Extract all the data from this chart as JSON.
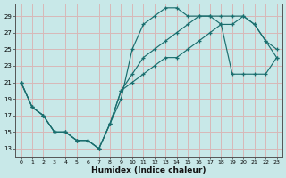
{
  "xlabel": "Humidex (Indice chaleur)",
  "bg_color": "#c8e8e8",
  "grid_color": "#d8b8b8",
  "line_color": "#1a6e6e",
  "xlim": [
    -0.5,
    23.5
  ],
  "ylim": [
    12.0,
    30.5
  ],
  "xticks": [
    0,
    1,
    2,
    3,
    4,
    5,
    6,
    7,
    8,
    9,
    10,
    11,
    12,
    13,
    14,
    15,
    16,
    17,
    18,
    19,
    20,
    21,
    22,
    23
  ],
  "yticks": [
    13,
    15,
    17,
    19,
    21,
    23,
    25,
    27,
    29
  ],
  "line1_x": [
    0,
    1,
    2,
    3,
    4,
    5,
    6,
    7,
    8,
    9,
    10,
    11,
    12,
    13,
    14,
    15,
    16,
    17,
    18,
    19,
    20,
    21,
    22,
    23
  ],
  "line1_y": [
    21,
    18,
    17,
    15,
    15,
    14,
    14,
    13,
    16,
    19,
    25,
    28,
    29,
    30,
    30,
    29,
    29,
    29,
    29,
    29,
    29,
    28,
    26,
    25
  ],
  "line2_x": [
    0,
    1,
    2,
    3,
    4,
    5,
    6,
    7,
    8,
    9,
    10,
    11,
    12,
    13,
    14,
    15,
    16,
    17,
    18,
    19,
    20,
    21,
    22,
    23
  ],
  "line2_y": [
    21,
    18,
    17,
    15,
    15,
    14,
    14,
    13,
    16,
    20,
    22,
    24,
    25,
    26,
    27,
    28,
    29,
    29,
    28,
    28,
    29,
    28,
    26,
    24
  ],
  "line3_x": [
    0,
    1,
    2,
    3,
    4,
    5,
    6,
    7,
    8,
    9,
    10,
    11,
    12,
    13,
    14,
    15,
    16,
    17,
    18,
    19,
    20,
    21,
    22,
    23
  ],
  "line3_y": [
    21,
    18,
    17,
    15,
    15,
    14,
    14,
    13,
    16,
    20,
    21,
    22,
    23,
    24,
    24,
    25,
    26,
    27,
    28,
    22,
    22,
    22,
    22,
    24
  ]
}
